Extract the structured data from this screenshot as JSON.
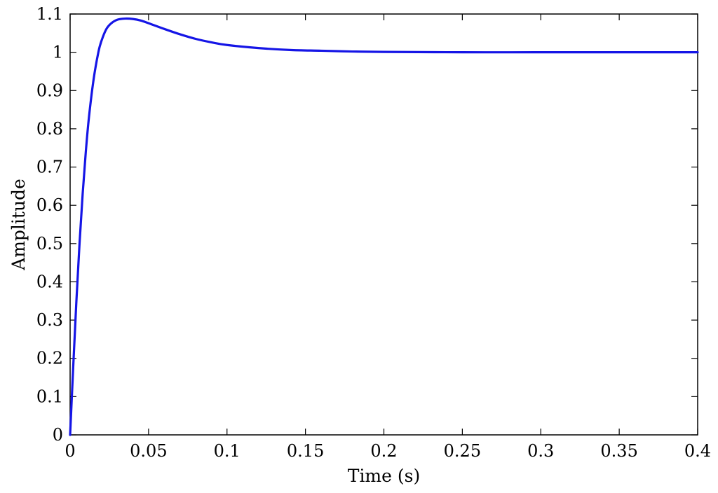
{
  "chart_data": {
    "type": "line",
    "xlabel": "Time (s)",
    "ylabel": "Amplitude",
    "xlim": [
      0,
      0.4
    ],
    "ylim": [
      0,
      1.1
    ],
    "x_ticks": [
      "0",
      "0.05",
      "0.1",
      "0.15",
      "0.2",
      "0.25",
      "0.3",
      "0.35",
      "0.4"
    ],
    "y_ticks": [
      "0",
      "0.1",
      "0.2",
      "0.3",
      "0.4",
      "0.5",
      "0.6",
      "0.7",
      "0.8",
      "0.9",
      "1",
      "1.1"
    ],
    "grid": false,
    "series": [
      {
        "color": "#1515e6",
        "x": [
          0,
          0.002,
          0.004,
          0.006,
          0.008,
          0.01,
          0.012,
          0.015,
          0.018,
          0.02,
          0.023,
          0.026,
          0.03,
          0.035,
          0.04,
          0.045,
          0.05,
          0.06,
          0.07,
          0.08,
          0.09,
          0.1,
          0.12,
          0.14,
          0.16,
          0.18,
          0.2,
          0.25,
          0.3,
          0.35,
          0.4
        ],
        "y": [
          0,
          0.18,
          0.35,
          0.5,
          0.63,
          0.74,
          0.83,
          0.93,
          1.0,
          1.03,
          1.06,
          1.075,
          1.085,
          1.088,
          1.087,
          1.083,
          1.076,
          1.061,
          1.047,
          1.035,
          1.026,
          1.019,
          1.011,
          1.006,
          1.004,
          1.002,
          1.001,
          1.0,
          1.0,
          1.0,
          1.0
        ]
      }
    ]
  }
}
